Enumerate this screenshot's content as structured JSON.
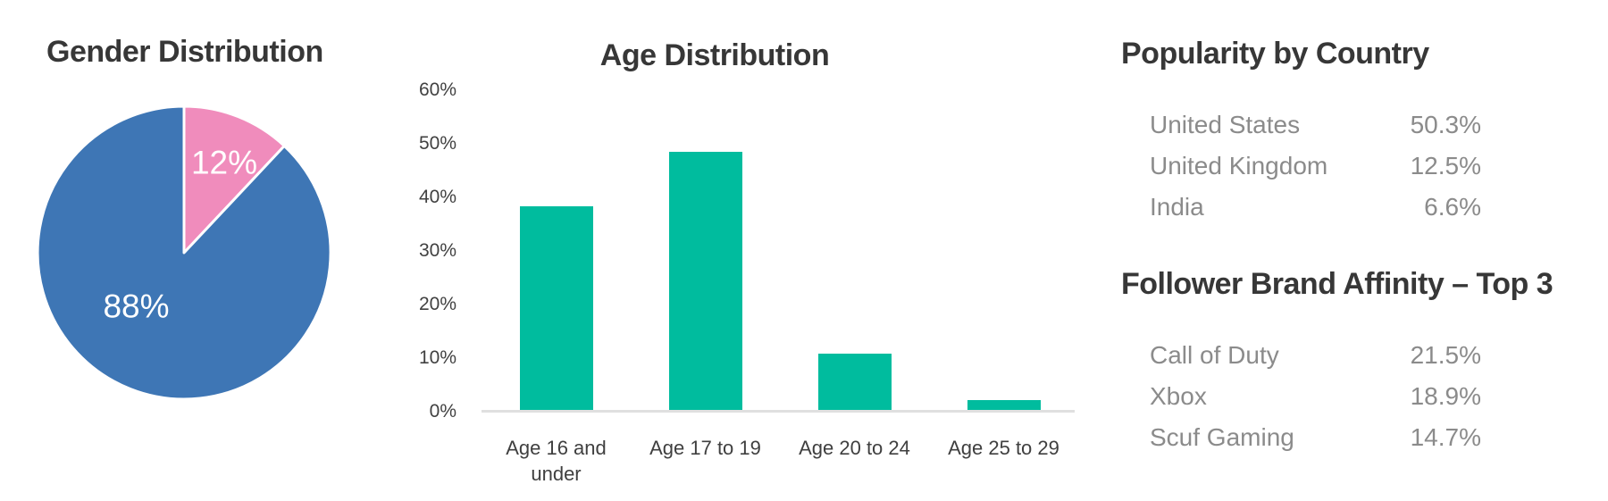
{
  "chart_data": [
    {
      "type": "pie",
      "title": "Gender Distribution",
      "slices": [
        {
          "label": "12%",
          "value": 12,
          "color": "#F08CBC"
        },
        {
          "label": "88%",
          "value": 88,
          "color": "#3E76B5"
        }
      ],
      "start_angle_deg": 0,
      "direction": "clockwise",
      "separator_color": "#FFFFFF"
    },
    {
      "type": "bar",
      "title": "Age Distribution",
      "categories": [
        "Age 16 and under",
        "Age 17 to 19",
        "Age 20 to 24",
        "Age 25 to 29"
      ],
      "values": [
        38.3,
        48.5,
        10.8,
        2.2
      ],
      "bar_color": "#00BC9E",
      "xlabel": "",
      "ylabel": "",
      "ylim": [
        0,
        60
      ],
      "yticks": [
        0,
        10,
        20,
        30,
        40,
        50,
        60
      ],
      "ytick_suffix": "%",
      "grid": false,
      "legend": false
    }
  ],
  "panels": {
    "popularity": {
      "title": "Popularity by Country",
      "rows": [
        {
          "label": "United States",
          "value": "50.3%"
        },
        {
          "label": "United Kingdom",
          "value": "12.5%"
        },
        {
          "label": "India",
          "value": "6.6%"
        }
      ]
    },
    "affinity": {
      "title": "Follower Brand Affinity – Top 3",
      "rows": [
        {
          "label": "Call of Duty",
          "value": "21.5%"
        },
        {
          "label": "Xbox",
          "value": "18.9%"
        },
        {
          "label": "Scuf Gaming",
          "value": "14.7%"
        }
      ]
    }
  }
}
